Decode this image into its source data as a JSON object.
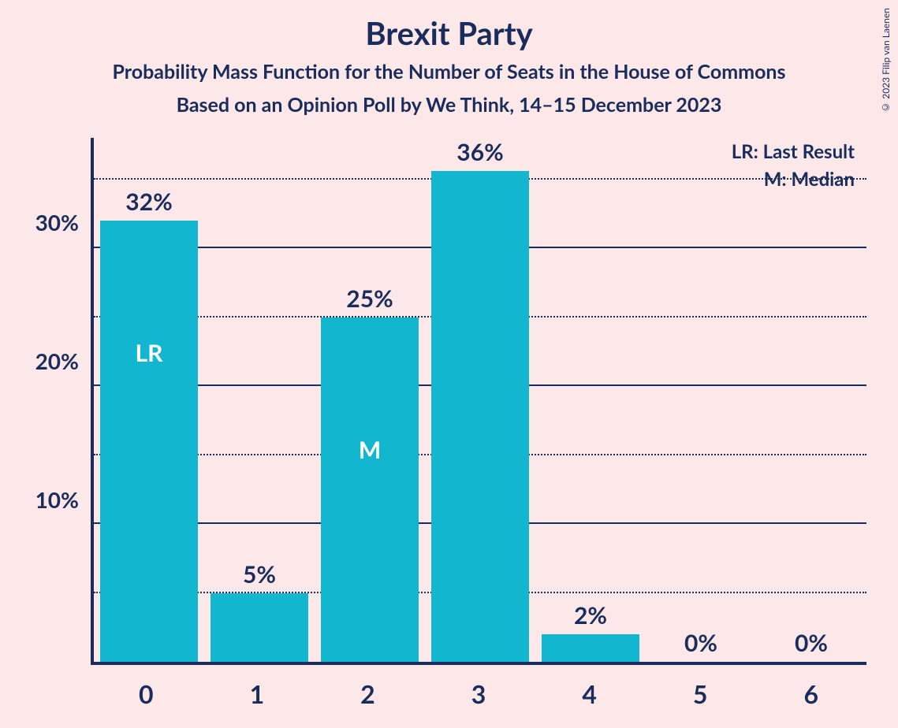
{
  "title": "Brexit Party",
  "subtitle1": "Probability Mass Function for the Number of Seats in the House of Commons",
  "subtitle2": "Based on an Opinion Poll by We Think, 14–15 December 2023",
  "copyright": "© 2023 Filip van Laenen",
  "legend": {
    "lr": "LR: Last Result",
    "m": "M: Median"
  },
  "chart": {
    "type": "bar",
    "bar_color": "#12b6cf",
    "axis_color": "#1a2c5b",
    "text_color": "#1a2c5b",
    "annot_color": "#ffffff",
    "background_color": "#fce8e8",
    "ylim_max": 38,
    "y_ticks_major": [
      10,
      20,
      30
    ],
    "y_ticks_minor": [
      5,
      15,
      25,
      35
    ],
    "categories": [
      "0",
      "1",
      "2",
      "3",
      "4",
      "5",
      "6"
    ],
    "values": [
      32,
      5,
      25,
      36,
      2,
      0,
      0
    ],
    "value_labels": [
      "32%",
      "5%",
      "25%",
      "36%",
      "2%",
      "0%",
      "0%"
    ],
    "annotations": [
      "LR",
      "",
      "M",
      "",
      "",
      "",
      ""
    ],
    "y_tick_labels": {
      "10": "10%",
      "20": "20%",
      "30": "30%"
    }
  }
}
